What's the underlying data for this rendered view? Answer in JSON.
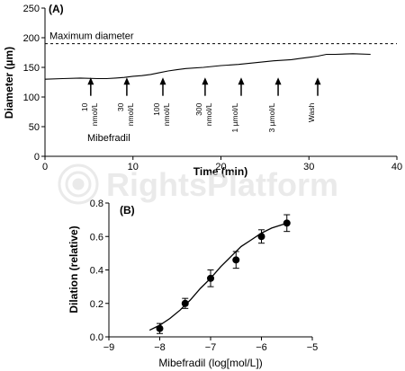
{
  "watermark": {
    "text": "RightsPlatform"
  },
  "chart_data": [
    {
      "type": "line",
      "panel_label": "(A)",
      "xlabel": "Time (min)",
      "ylabel": "Diameter (µm)",
      "xlim": [
        0,
        40
      ],
      "ylim": [
        0,
        250
      ],
      "xticks": [
        0,
        10,
        20,
        30,
        40
      ],
      "yticks": [
        0,
        50,
        100,
        150,
        200,
        250
      ],
      "reference_line": {
        "label": "Maximum diameter",
        "y": 190,
        "style": "dashed"
      },
      "series": [
        {
          "x": [
            0,
            2,
            4,
            6,
            7,
            8,
            9,
            10,
            11,
            12,
            13,
            14,
            15,
            16,
            18,
            20,
            22,
            24,
            26,
            28,
            29,
            30,
            31,
            32,
            33,
            35,
            37
          ],
          "y": [
            130,
            131,
            132,
            131,
            131,
            132,
            133,
            135,
            136,
            138,
            141,
            144,
            146,
            148,
            150,
            153,
            155,
            158,
            161,
            163,
            165,
            167,
            169,
            172,
            172,
            173,
            172
          ]
        }
      ],
      "drug_label": "Mibefradil",
      "annotations": [
        {
          "x": 5.2,
          "label_lines": [
            "10",
            "nmol/L"
          ]
        },
        {
          "x": 9.3,
          "label_lines": [
            "30",
            "nmol/L"
          ]
        },
        {
          "x": 13.4,
          "label_lines": [
            "100",
            "nmol/L"
          ]
        },
        {
          "x": 18.2,
          "label_lines": [
            "300",
            "nmol/L"
          ]
        },
        {
          "x": 22.3,
          "label_lines": [
            "1 µmol/L"
          ]
        },
        {
          "x": 26.5,
          "label_lines": [
            "3 µmol/L"
          ]
        },
        {
          "x": 31.0,
          "label_lines": [
            "Wash"
          ]
        }
      ]
    },
    {
      "type": "scatter",
      "panel_label": "(B)",
      "xlabel": "Mibefradil (log[mol/L])",
      "ylabel": "Dilation (relative)",
      "xlim": [
        -9,
        -5
      ],
      "ylim": [
        0,
        0.8
      ],
      "xticks": [
        -9,
        -8,
        -7,
        -6,
        -5
      ],
      "yticks": [
        0,
        0.2,
        0.4,
        0.6,
        0.8
      ],
      "series": [
        {
          "x": [
            -8,
            -7.5,
            -7,
            -6.5,
            -6,
            -5.5
          ],
          "y": [
            0.05,
            0.2,
            0.35,
            0.46,
            0.6,
            0.68
          ],
          "error": [
            0.03,
            0.03,
            0.05,
            0.05,
            0.04,
            0.05
          ]
        }
      ],
      "fit": {
        "type": "sigmoid",
        "x": [
          -8.2,
          -8.0,
          -7.8,
          -7.6,
          -7.4,
          -7.2,
          -7.0,
          -6.8,
          -6.6,
          -6.4,
          -6.2,
          -6.0,
          -5.8,
          -5.6,
          -5.5
        ],
        "y": [
          0.04,
          0.07,
          0.11,
          0.16,
          0.22,
          0.29,
          0.35,
          0.42,
          0.48,
          0.54,
          0.58,
          0.62,
          0.65,
          0.67,
          0.68
        ]
      }
    }
  ]
}
